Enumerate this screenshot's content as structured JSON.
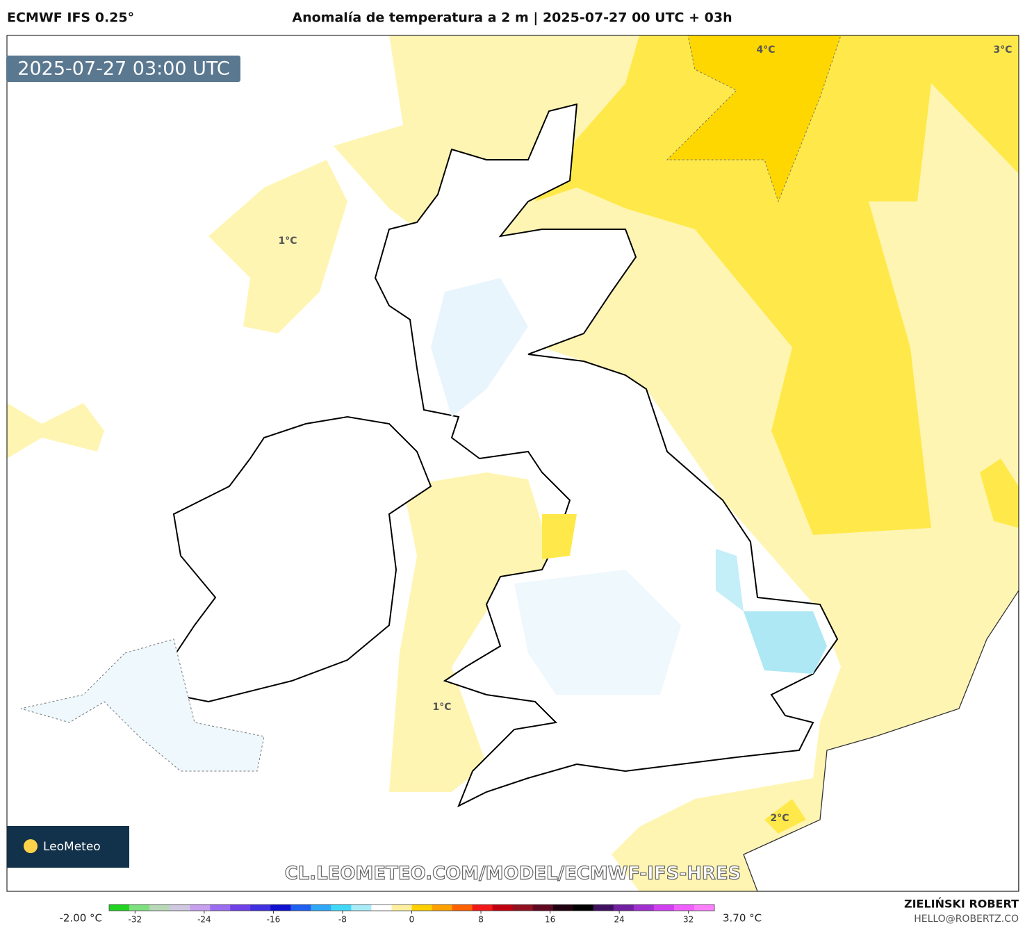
{
  "header": {
    "model": "ECMWF IFS 0.25°",
    "title": "Anomalía de temperatura a 2 m | 2025-07-27 00 UTC + 03h"
  },
  "map": {
    "valid_time": "2025-07-27 03:00 UTC",
    "contour_labels": [
      "4°C",
      "3°C",
      "1°C",
      "1°C",
      "2°C"
    ],
    "watermark": "CL.LEOMETEO.COM/MODEL/ECMWF-IFS-HRES",
    "logo": "LeoMeteo"
  },
  "colorbar": {
    "min_label": "-2.00 °C",
    "max_label": "3.70 °C",
    "lim": [
      -35,
      35
    ],
    "ticks": [
      -32,
      -24,
      -16,
      -8,
      0,
      8,
      16,
      24,
      32
    ],
    "colors": [
      "#22d322",
      "#7ee07e",
      "#b8d8b8",
      "#cfc8e0",
      "#c7a0f0",
      "#9a6cf0",
      "#7040e8",
      "#4030e0",
      "#1010d0",
      "#2060f0",
      "#30a8f8",
      "#40d8f8",
      "#a8ecf8",
      "#ffffff",
      "#fff0a0",
      "#ffd000",
      "#ffa000",
      "#ff6000",
      "#f01818",
      "#c00010",
      "#901020",
      "#600820",
      "#200010",
      "#000000",
      "#401060",
      "#7020a0",
      "#a030d0",
      "#d040f0",
      "#f060ff",
      "#ff80ff"
    ]
  },
  "credits": {
    "author": "ZIELIŃSKI ROBERT",
    "email": "HELLO@ROBERTZ.CO"
  }
}
